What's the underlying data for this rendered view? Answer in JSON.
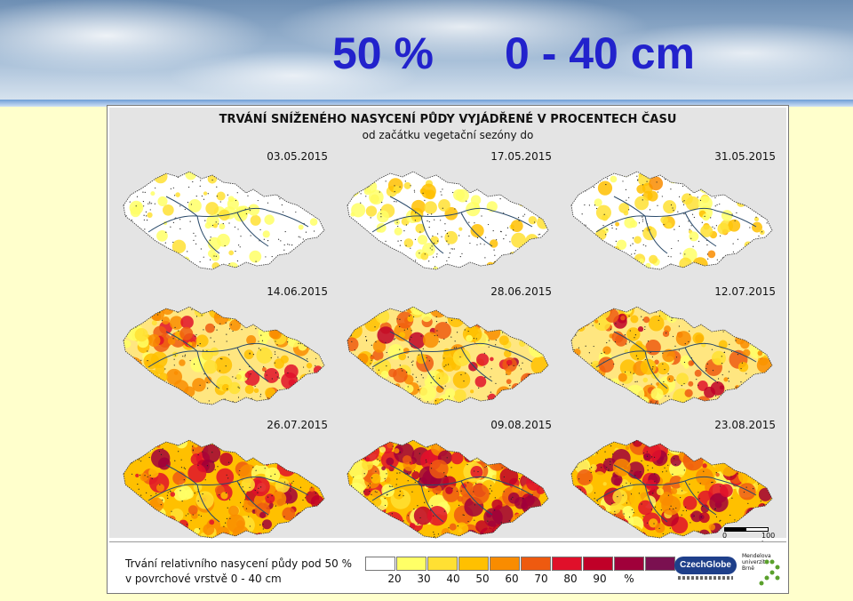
{
  "slide": {
    "headline_left": "50 %",
    "headline_right": "0 - 40 cm"
  },
  "figure": {
    "title": "TRVÁNÍ SNÍŽENÉHO NASYCENÍ PŮDY VYJÁDŘENÉ V PROCENTECH ČASU",
    "subtitle": "od začátku vegetační sezóny do",
    "panels": [
      {
        "date": "03.05.2015",
        "severity": 0.15
      },
      {
        "date": "17.05.2015",
        "severity": 0.25
      },
      {
        "date": "31.05.2015",
        "severity": 0.3
      },
      {
        "date": "14.06.2015",
        "severity": 0.5
      },
      {
        "date": "28.06.2015",
        "severity": 0.6
      },
      {
        "date": "12.07.2015",
        "severity": 0.6
      },
      {
        "date": "26.07.2015",
        "severity": 0.75
      },
      {
        "date": "09.08.2015",
        "severity": 0.85
      },
      {
        "date": "23.08.2015",
        "severity": 0.85
      }
    ],
    "scale": {
      "zero": "0",
      "max": "100 km"
    }
  },
  "legend": {
    "line1": "Trvání relativního nasycení půdy pod 50 %",
    "line2": "v povrchové vrstvě 0 - 40 cm",
    "colors": [
      "#ffffff",
      "#ffff66",
      "#ffe033",
      "#ffc000",
      "#f98c00",
      "#ee5a10",
      "#e0102a",
      "#c00028",
      "#a0003a",
      "#7a1050"
    ],
    "ticks": [
      "20",
      "30",
      "40",
      "50",
      "60",
      "70",
      "80",
      "90",
      "%"
    ]
  },
  "logos": {
    "czechglobe": "CzechGlobe",
    "mendel": "Mendelova univerzita v Brně"
  }
}
